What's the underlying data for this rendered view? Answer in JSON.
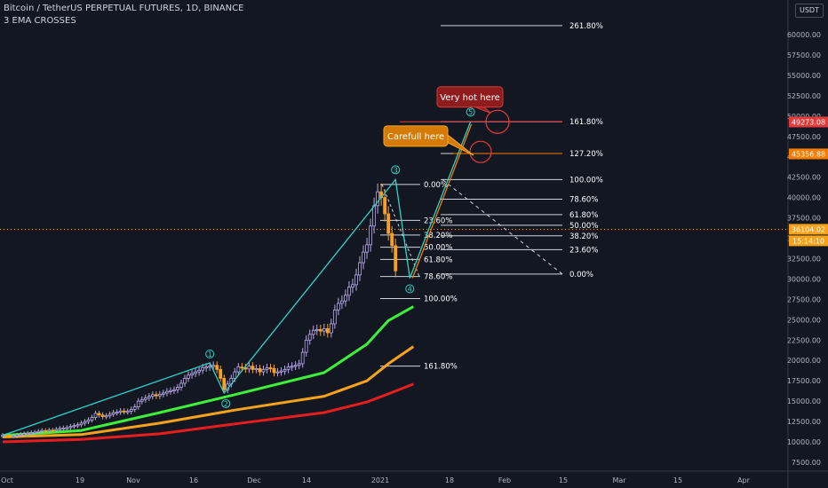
{
  "header": {
    "title": "Bitcoin / TetherUS PERPETUAL FUTURES, 1D, BINANCE",
    "indicator": "3 EMA CROSSES",
    "currency": "USDT"
  },
  "colors": {
    "background": "#131722",
    "up_candle": "#b9a8e6",
    "down_candle": "#f7a21b",
    "ema_fast": "#3ef03b",
    "ema_mid": "#f7a21b",
    "ema_slow": "#e81e1e",
    "wave": "#2ed3c8",
    "fib": "#d1d4dc",
    "price_red": "#e33b3b",
    "price_orange": "#f57c00"
  },
  "chart_data": {
    "type": "candlestick",
    "title": "Bitcoin / TetherUS PERPETUAL FUTURES, 1D, BINANCE",
    "xlabel": "",
    "ylabel": "",
    "ylim": [
      7500,
      62500
    ],
    "grid": false,
    "x_ticks": [
      "Oct",
      "19",
      "Nov",
      "16",
      "Dec",
      "14",
      "2021",
      "18",
      "Feb",
      "15",
      "Mar",
      "15",
      "Apr"
    ],
    "y_ticks": [
      7500,
      10000,
      12500,
      15000,
      17500,
      20000,
      22500,
      25000,
      27500,
      30000,
      32500,
      35000,
      37500,
      40000,
      42500,
      45000,
      47500,
      50000,
      52500,
      55000,
      57500,
      60000
    ],
    "candles_close": [
      10800,
      10750,
      10700,
      10720,
      10850,
      10950,
      11000,
      11050,
      11150,
      11200,
      11300,
      11400,
      11350,
      11450,
      11400,
      11550,
      11650,
      11700,
      11750,
      11900,
      12000,
      12100,
      12300,
      12500,
      12700,
      13000,
      13500,
      13300,
      13100,
      13200,
      13400,
      13600,
      13650,
      13800,
      13700,
      13750,
      14000,
      14300,
      15000,
      15200,
      15400,
      15600,
      15800,
      15650,
      15850,
      16000,
      16200,
      16300,
      16400,
      16700,
      17200,
      17800,
      18200,
      18400,
      18600,
      18800,
      19100,
      19200,
      19300,
      19400,
      18900,
      17800,
      16400,
      17100,
      17800,
      18600,
      19200,
      19100,
      18950,
      19300,
      18900,
      19000,
      18600,
      18900,
      19100,
      19000,
      18500,
      18600,
      18700,
      18900,
      19200,
      19300,
      19400,
      19600,
      21000,
      22500,
      23200,
      23700,
      23800,
      23600,
      23900,
      23400,
      24500,
      26200,
      27000,
      27300,
      28000,
      29000,
      29300,
      30500,
      32000,
      33300,
      34200,
      36500,
      39000,
      40700,
      40000,
      38000,
      35600,
      34100,
      31000
    ],
    "ema_fast": [
      [
        0,
        10800
      ],
      [
        22,
        11400
      ],
      [
        44,
        13600
      ],
      [
        65,
        15800
      ],
      [
        90,
        18500
      ],
      [
        102,
        22000
      ],
      [
        108,
        24900
      ],
      [
        115,
        26600
      ]
    ],
    "ema_mid": [
      [
        0,
        10600
      ],
      [
        22,
        10900
      ],
      [
        44,
        12300
      ],
      [
        65,
        13900
      ],
      [
        90,
        15600
      ],
      [
        102,
        17500
      ],
      [
        108,
        19600
      ],
      [
        115,
        21700
      ]
    ],
    "ema_slow": [
      [
        0,
        10000
      ],
      [
        22,
        10300
      ],
      [
        44,
        11000
      ],
      [
        65,
        12200
      ],
      [
        90,
        13600
      ],
      [
        102,
        14900
      ],
      [
        108,
        15900
      ],
      [
        115,
        17100
      ]
    ],
    "wave_points": [
      {
        "label": "1",
        "x": 58,
        "y": 19700
      },
      {
        "label": "2",
        "x": 62,
        "y": 16000
      },
      {
        "label": "3",
        "x": 110,
        "y": 42200
      },
      {
        "label": "4",
        "x": 114,
        "y": 30100
      },
      {
        "label": "5",
        "x": 131,
        "y": 49300
      }
    ],
    "fib_retracement": [
      {
        "label": "0.00%",
        "value": 41600
      },
      {
        "label": "23.60%",
        "value": 37200
      },
      {
        "label": "38.20%",
        "value": 35400
      },
      {
        "label": "50.00%",
        "value": 33900
      },
      {
        "label": "61.80%",
        "value": 32400
      },
      {
        "label": "78.60%",
        "value": 30300
      },
      {
        "label": "100.00%",
        "value": 27600
      },
      {
        "label": "161.80%",
        "value": 19300
      }
    ],
    "fib_extension": [
      {
        "label": "261.80%",
        "value": 61100
      },
      {
        "label": "161.80%",
        "value": 49300
      },
      {
        "label": "127.20%",
        "value": 45400
      },
      {
        "label": "100.00%",
        "value": 42200
      },
      {
        "label": "78.60%",
        "value": 39800
      },
      {
        "label": "61.80%",
        "value": 37900
      },
      {
        "label": "50.00%",
        "value": 36600
      },
      {
        "label": "38.20%",
        "value": 35300
      },
      {
        "label": "23.60%",
        "value": 33600
      },
      {
        "label": "0.00%",
        "value": 30600
      }
    ],
    "price_badges": [
      {
        "label": "49273.08",
        "value": 49273.08,
        "color": "#e33b3b"
      },
      {
        "label": "45356.88",
        "value": 45356.88,
        "color": "#f57c00"
      },
      {
        "label": "36104.02",
        "value": 36104.02,
        "color": "#f7a21b"
      },
      {
        "label": "15:14:10",
        "value": 34900,
        "color": "#f7a21b"
      }
    ],
    "annotations": [
      {
        "text": "Very hot here",
        "value": 52400
      },
      {
        "text": "Carefull here",
        "value": 47600
      }
    ]
  }
}
